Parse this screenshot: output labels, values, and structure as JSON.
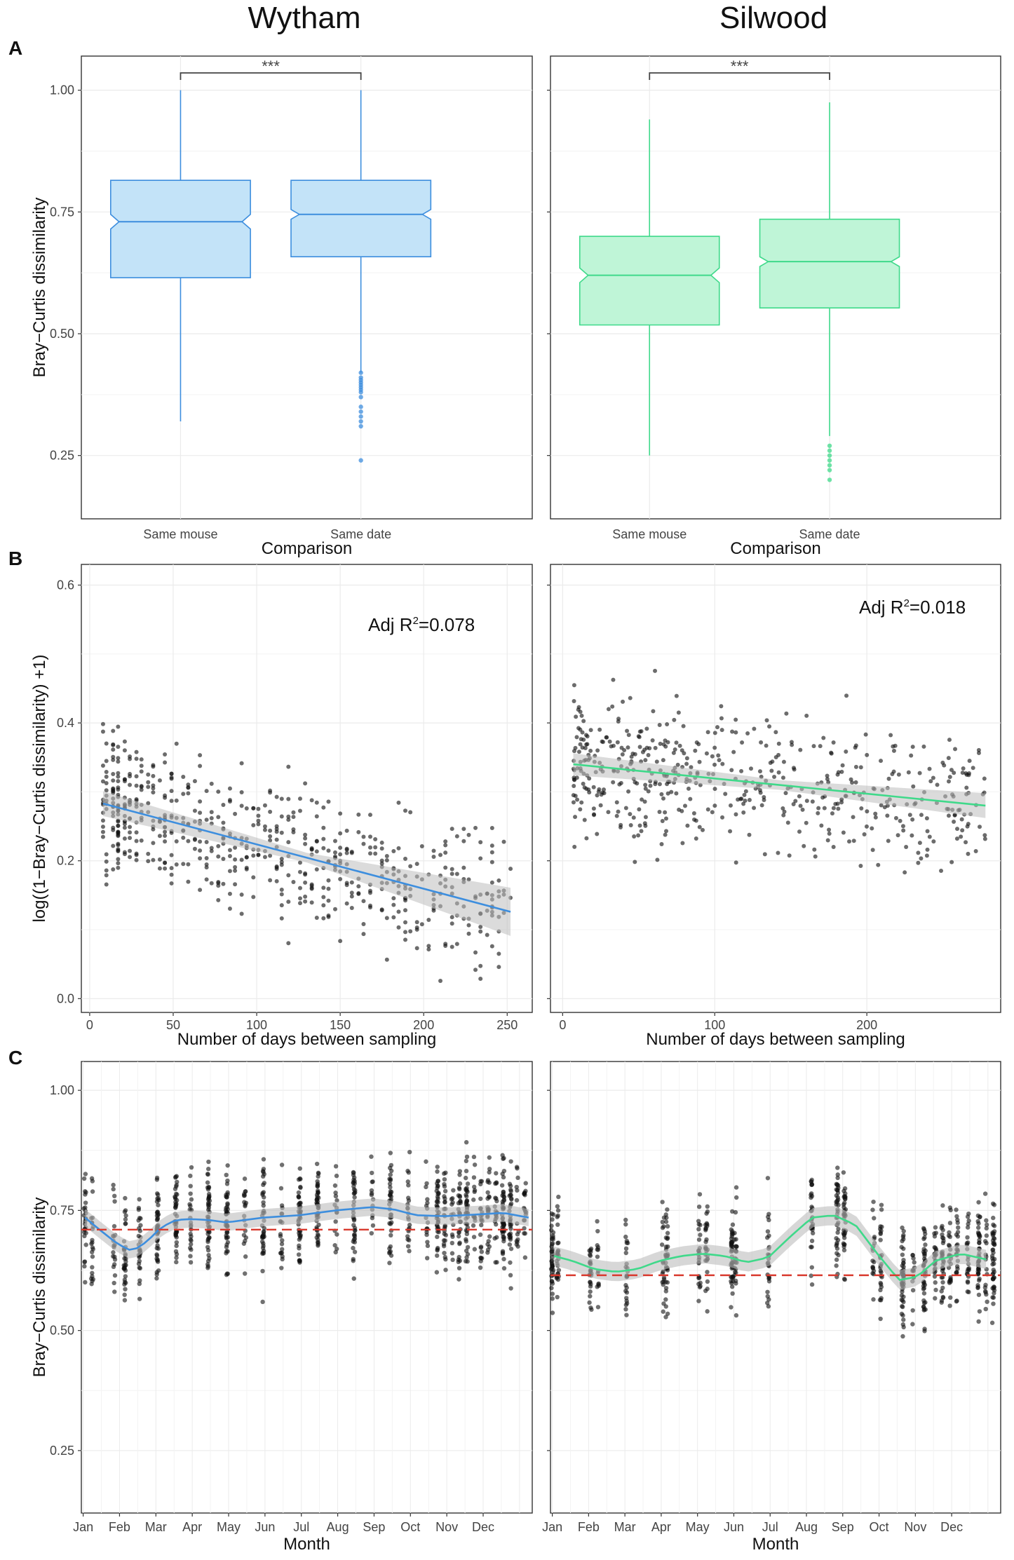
{
  "titles": {
    "left": "Wytham",
    "right": "Silwood"
  },
  "panel_labels": [
    "A",
    "B",
    "C"
  ],
  "colors": {
    "wytham_line": "#3d8ede",
    "wytham_fill": "#c3e3f8",
    "silwood_line": "#3fd98a",
    "silwood_fill": "#bff5d7",
    "mean_line": "#d93a2e",
    "points": "#111111",
    "ci_band": "#bdbdbd",
    "grid": "#ebebeb"
  },
  "chart_data": [
    {
      "id": "A-wytham",
      "type": "box",
      "notched": true,
      "xlabel": "Comparison",
      "ylabel": "Bray−Curtis dissimilarity",
      "categories": [
        "Same mouse",
        "Same date"
      ],
      "ylim": [
        0.12,
        1.07
      ],
      "yticks": [
        0.25,
        0.5,
        0.75,
        1.0
      ],
      "ytick_labels": [
        "0.25",
        "0.50",
        "0.75",
        "1.00"
      ],
      "boxes": [
        {
          "min": 0.32,
          "q1": 0.615,
          "median": 0.73,
          "q3": 0.815,
          "max": 1.0,
          "notch_lo": 0.715,
          "notch_hi": 0.745,
          "outliers": []
        },
        {
          "min": 0.42,
          "q1": 0.658,
          "median": 0.745,
          "q3": 0.815,
          "max": 1.0,
          "notch_lo": 0.735,
          "notch_hi": 0.755,
          "outliers": [
            0.42,
            0.41,
            0.405,
            0.4,
            0.395,
            0.39,
            0.385,
            0.38,
            0.37,
            0.35,
            0.34,
            0.33,
            0.32,
            0.31,
            0.24
          ]
        }
      ],
      "significance": "***"
    },
    {
      "id": "A-silwood",
      "type": "box",
      "notched": true,
      "xlabel": "Comparison",
      "ylabel": "",
      "categories": [
        "Same mouse",
        "Same date"
      ],
      "ylim": [
        0.12,
        1.07
      ],
      "yticks": [
        0.25,
        0.5,
        0.75,
        1.0
      ],
      "boxes": [
        {
          "min": 0.25,
          "q1": 0.518,
          "median": 0.62,
          "q3": 0.7,
          "max": 0.94,
          "notch_lo": 0.605,
          "notch_hi": 0.635,
          "outliers": []
        },
        {
          "min": 0.29,
          "q1": 0.553,
          "median": 0.648,
          "q3": 0.735,
          "max": 0.975,
          "notch_lo": 0.638,
          "notch_hi": 0.658,
          "outliers": [
            0.27,
            0.26,
            0.25,
            0.24,
            0.23,
            0.22,
            0.2
          ]
        }
      ],
      "significance": "***"
    },
    {
      "id": "B-wytham",
      "type": "scatter",
      "xlabel": "Number of days between sampling",
      "ylabel": "log((1−Bray−Curtis dissimilarity)  +1)",
      "xlim": [
        -5,
        265
      ],
      "ylim": [
        -0.02,
        0.63
      ],
      "xticks": [
        0,
        50,
        100,
        150,
        200,
        250
      ],
      "yticks": [
        0.0,
        0.2,
        0.4,
        0.6
      ],
      "ytick_labels": [
        "0.0",
        "0.2",
        "0.4",
        "0.6"
      ],
      "annotation": {
        "prefix": "Adj R",
        "sup": "2",
        "value": "=0.078"
      },
      "fit": {
        "x0": 8,
        "y0": 0.283,
        "x1": 252,
        "y1": 0.126,
        "se0": 0.018,
        "semid": 0.007,
        "se1": 0.035
      },
      "point_summary": {
        "n": 620,
        "x_range": [
          8,
          252
        ],
        "density": "decreasing with x"
      }
    },
    {
      "id": "B-silwood",
      "type": "scatter",
      "xlabel": "Number of days between sampling",
      "ylabel": "",
      "xlim": [
        -8,
        288
      ],
      "ylim": [
        -0.02,
        0.63
      ],
      "xticks": [
        0,
        100,
        200
      ],
      "yticks": [
        0.0,
        0.2,
        0.4,
        0.6
      ],
      "annotation": {
        "prefix": "Adj R",
        "sup": "2",
        "value": "=0.018"
      },
      "fit": {
        "x0": 7,
        "y0": 0.34,
        "x1": 278,
        "y1": 0.28,
        "se0": 0.016,
        "semid": 0.007,
        "se1": 0.018
      },
      "point_summary": {
        "n": 540,
        "x_range": [
          7,
          278
        ]
      }
    },
    {
      "id": "C-wytham",
      "type": "scatter",
      "xlabel": "Month",
      "ylabel": "Bray−Curtis dissimilarity",
      "xlim": [
        0.0,
        12.4
      ],
      "ylim": [
        0.12,
        1.06
      ],
      "yticks": [
        0.25,
        0.5,
        0.75,
        1.0
      ],
      "ytick_labels": [
        "0.25",
        "0.50",
        "0.75",
        "1.00"
      ],
      "month_labels": [
        "Jan",
        "Feb",
        "Mar",
        "Apr",
        "May",
        "Jun",
        "Jul",
        "Aug",
        "Sep",
        "Oct",
        "Nov",
        "Dec"
      ],
      "mean_line": 0.71,
      "smooth": [
        [
          0.1,
          0.735
        ],
        [
          0.5,
          0.71
        ],
        [
          1.0,
          0.68
        ],
        [
          1.4,
          0.665
        ],
        [
          1.8,
          0.685
        ],
        [
          2.2,
          0.715
        ],
        [
          2.6,
          0.73
        ],
        [
          3.0,
          0.732
        ],
        [
          3.5,
          0.73
        ],
        [
          4.0,
          0.725
        ],
        [
          5.0,
          0.735
        ],
        [
          6.0,
          0.74
        ],
        [
          7.0,
          0.75
        ],
        [
          8.0,
          0.757
        ],
        [
          8.6,
          0.752
        ],
        [
          9.2,
          0.74
        ],
        [
          10.0,
          0.738
        ],
        [
          11.0,
          0.742
        ],
        [
          11.6,
          0.745
        ],
        [
          12.3,
          0.735
        ]
      ],
      "smooth_se": 0.018,
      "point_columns": [
        0.1,
        0.3,
        0.9,
        1.2,
        1.6,
        2.1,
        2.6,
        3.0,
        3.5,
        4.0,
        4.5,
        5.0,
        5.5,
        6.0,
        6.5,
        7.0,
        7.5,
        8.0,
        8.5,
        9.0,
        9.5,
        9.8,
        10.0,
        10.2,
        10.4,
        10.6,
        10.8,
        11.0,
        11.2,
        11.4,
        11.6,
        11.8,
        12.0,
        12.2
      ]
    },
    {
      "id": "C-silwood",
      "type": "scatter",
      "xlabel": "Month",
      "ylabel": "",
      "xlim": [
        0.0,
        12.4
      ],
      "ylim": [
        0.12,
        1.06
      ],
      "yticks": [
        0.25,
        0.5,
        0.75,
        1.0
      ],
      "month_labels": [
        "Jan",
        "Feb",
        "Mar",
        "Apr",
        "May",
        "Jun",
        "Jul",
        "Aug",
        "Sep",
        "Oct",
        "Nov",
        "Dec"
      ],
      "mean_line": 0.615,
      "smooth": [
        [
          0.1,
          0.655
        ],
        [
          0.6,
          0.645
        ],
        [
          1.2,
          0.628
        ],
        [
          1.8,
          0.622
        ],
        [
          2.4,
          0.628
        ],
        [
          3.0,
          0.645
        ],
        [
          3.6,
          0.655
        ],
        [
          4.2,
          0.66
        ],
        [
          4.8,
          0.655
        ],
        [
          5.4,
          0.642
        ],
        [
          6.0,
          0.652
        ],
        [
          6.6,
          0.695
        ],
        [
          7.2,
          0.735
        ],
        [
          7.8,
          0.74
        ],
        [
          8.4,
          0.72
        ],
        [
          9.0,
          0.66
        ],
        [
          9.6,
          0.605
        ],
        [
          10.1,
          0.612
        ],
        [
          10.6,
          0.645
        ],
        [
          11.3,
          0.66
        ],
        [
          12.0,
          0.648
        ]
      ],
      "smooth_se": 0.02,
      "point_columns": [
        0.05,
        0.2,
        1.1,
        1.3,
        2.1,
        3.1,
        3.2,
        4.1,
        4.3,
        5.0,
        5.1,
        6.0,
        7.2,
        7.9,
        8.1,
        8.9,
        9.1,
        9.7,
        10.0,
        10.3,
        10.6,
        10.8,
        11.0,
        11.2,
        11.5,
        11.8,
        12.0,
        12.2
      ]
    }
  ]
}
